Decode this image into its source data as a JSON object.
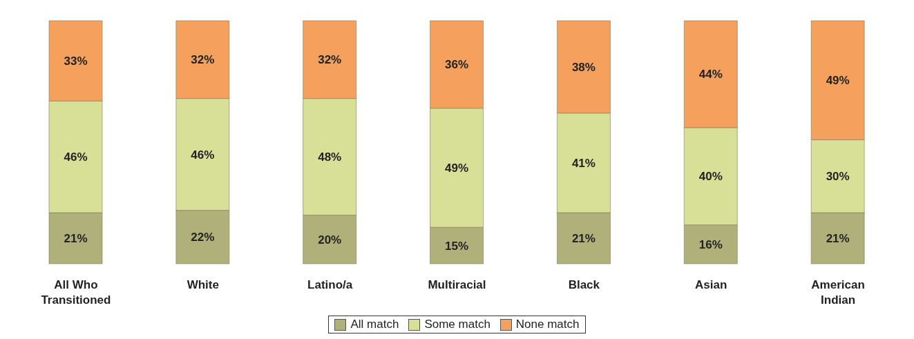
{
  "chart_data": {
    "type": "bar",
    "stacked": true,
    "legend": "bottom",
    "categories": [
      "All Who Transitioned",
      "White",
      "Latino/a",
      "Multiracial",
      "Black",
      "Asian",
      "American Indian"
    ],
    "series": [
      {
        "name": "All match",
        "color": "#b0b07a",
        "values": [
          21,
          22,
          20,
          15,
          21,
          16,
          21
        ],
        "value_labels": [
          "21%",
          "22%",
          "20%",
          "15%",
          "21%",
          "16%",
          "21%"
        ]
      },
      {
        "name": "Some match",
        "color": "#d8df97",
        "values": [
          46,
          46,
          48,
          49,
          41,
          40,
          30
        ],
        "value_labels": [
          "46%",
          "46%",
          "48%",
          "49%",
          "41%",
          "40%",
          "30%"
        ]
      },
      {
        "name": "None match",
        "color": "#f5a05c",
        "values": [
          33,
          32,
          32,
          36,
          38,
          44,
          49
        ],
        "value_labels": [
          "33%",
          "32%",
          "32%",
          "36%",
          "38%",
          "44%",
          "49%"
        ]
      }
    ]
  }
}
